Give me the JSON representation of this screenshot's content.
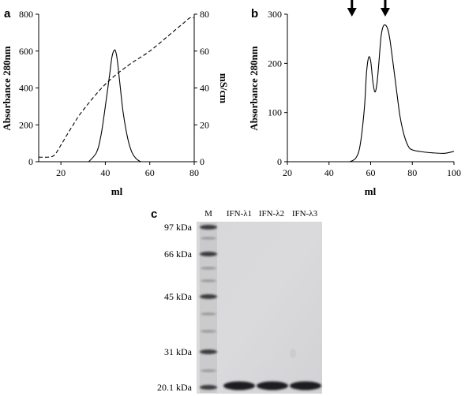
{
  "chart_data": [
    {
      "panel": "a",
      "type": "line",
      "xlabel": "ml",
      "ylabel": "Absorbance 280nm",
      "y2label": "mS/cm",
      "xlim": [
        10,
        80
      ],
      "ylim": [
        0,
        800
      ],
      "y2lim": [
        0,
        80
      ],
      "xticks": [
        "20",
        "40",
        "60",
        "80"
      ],
      "yticks": [
        "0",
        "200",
        "400",
        "600",
        "800"
      ],
      "y2ticks": [
        "0",
        "20",
        "40",
        "60",
        "80"
      ],
      "grid": false,
      "series": [
        {
          "style": "solid",
          "axis": "left",
          "x": [
            32.5,
            36,
            38,
            40,
            42,
            43,
            44,
            44.7,
            45.5,
            46.5,
            48,
            50,
            52,
            54,
            56
          ],
          "y": [
            0,
            50,
            140,
            300,
            480,
            570,
            605,
            595,
            540,
            430,
            270,
            130,
            50,
            15,
            0
          ]
        },
        {
          "style": "dashed",
          "axis": "right",
          "x": [
            10,
            14,
            17,
            20,
            25,
            30,
            40,
            50,
            60,
            70,
            75,
            78,
            80
          ],
          "y": [
            2.5,
            2.5,
            3.5,
            9,
            19,
            28,
            42,
            52,
            60,
            70,
            75,
            78,
            78
          ]
        }
      ]
    },
    {
      "panel": "b",
      "type": "line",
      "xlabel": "ml",
      "ylabel": "Absorbance 280nm",
      "xlim": [
        20,
        100
      ],
      "ylim": [
        0,
        300
      ],
      "xticks": [
        "20",
        "40",
        "60",
        "80",
        "100"
      ],
      "yticks": [
        "0",
        "100",
        "200",
        "300"
      ],
      "grid": false,
      "arrows_at_x": [
        51,
        67
      ],
      "series": [
        {
          "style": "solid",
          "x": [
            50,
            53,
            55,
            57,
            58,
            59,
            60,
            61,
            62,
            63,
            64,
            65,
            66,
            67,
            68,
            69,
            70,
            72,
            74,
            76,
            78,
            80,
            85,
            90,
            95,
            98,
            100
          ],
          "y": [
            0,
            8,
            35,
            110,
            180,
            212,
            205,
            165,
            142,
            158,
            205,
            255,
            275,
            278,
            272,
            255,
            225,
            160,
            95,
            55,
            32,
            24,
            20,
            18,
            17,
            19,
            21
          ]
        }
      ]
    },
    {
      "panel": "c",
      "type": "gel",
      "lanes": [
        "M",
        "IFN-λ1",
        "IFN-λ2",
        "IFN-λ3"
      ],
      "markers": [
        "97 kDa",
        "66 kDa",
        "45 kDa",
        "31 kDa",
        "20.1 kDa"
      ],
      "marker_values_kda": [
        97,
        66,
        45,
        31,
        20.1
      ]
    }
  ],
  "panels": {
    "a": "a",
    "b": "b",
    "c": "c"
  }
}
